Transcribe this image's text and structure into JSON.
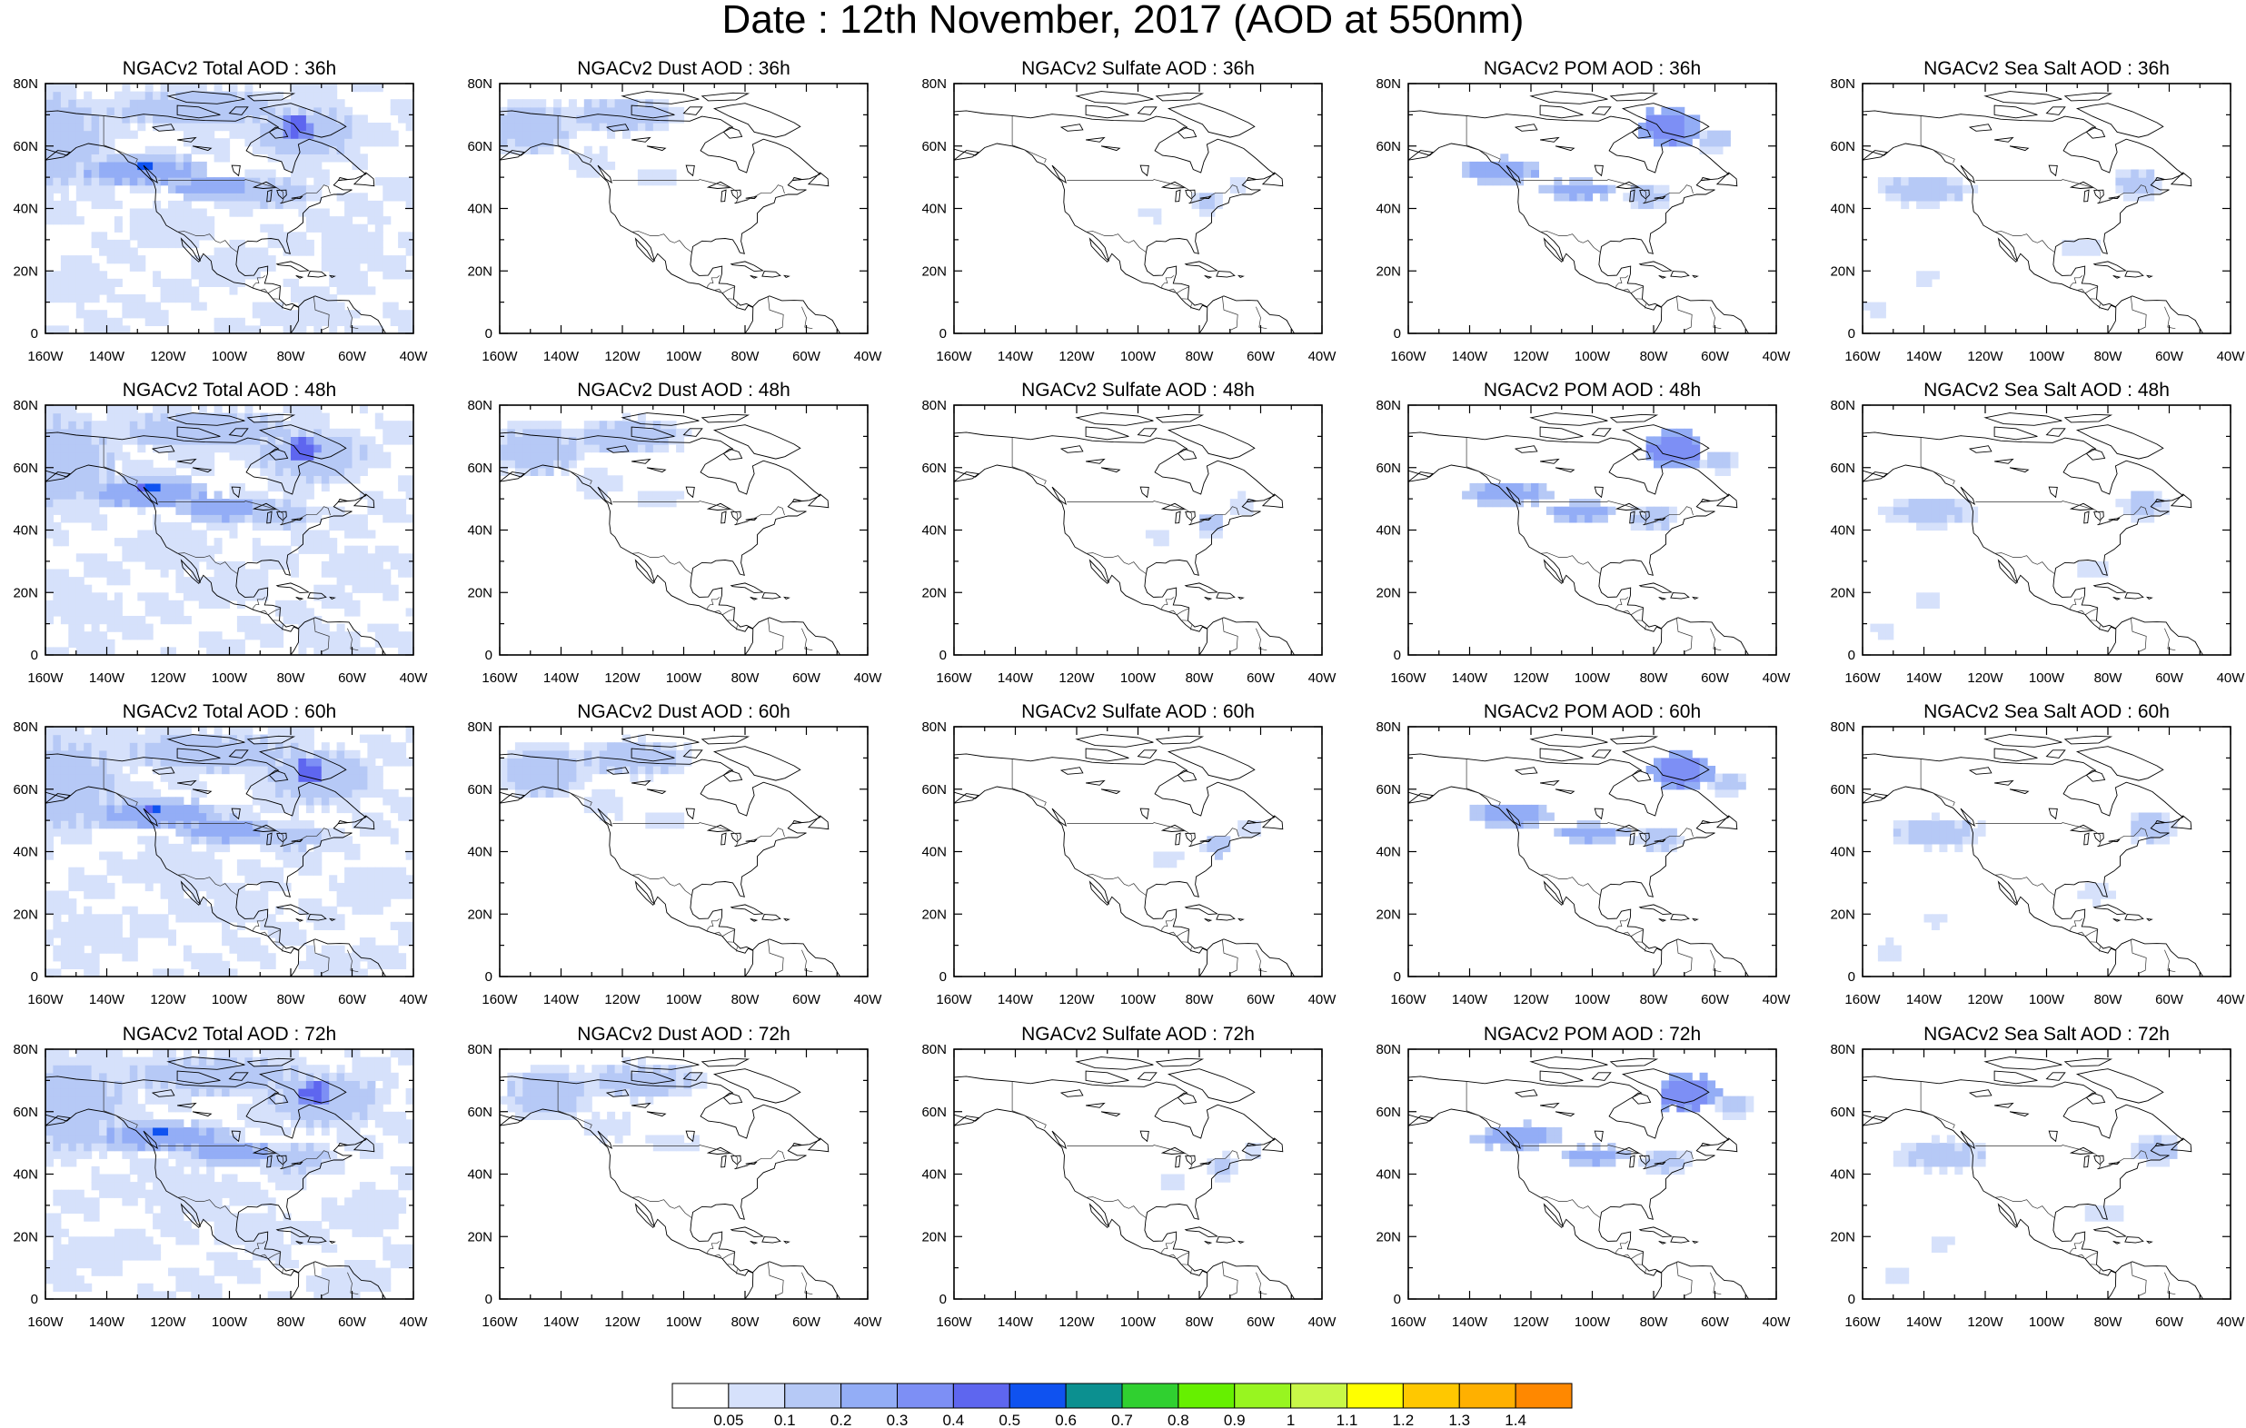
{
  "title": "Date : 12th November, 2017 (AOD at 550nm)",
  "map": {
    "lon_labels": [
      "160W",
      "140W",
      "120W",
      "100W",
      "80W",
      "60W",
      "40W"
    ],
    "lat_labels": [
      "0",
      "20N",
      "40N",
      "60N",
      "80N"
    ]
  },
  "rows": [
    {
      "hour": "36h",
      "titles": [
        "NGACv2 Total AOD : 36h",
        "NGACv2 Dust AOD : 36h",
        "NGACv2 Sulfate AOD : 36h",
        "NGACv2 POM AOD : 36h",
        "NGACv2 Sea Salt AOD : 36h"
      ]
    },
    {
      "hour": "48h",
      "titles": [
        "NGACv2 Total AOD : 48h",
        "NGACv2 Dust AOD : 48h",
        "NGACv2 Sulfate AOD : 48h",
        "NGACv2 POM AOD : 48h",
        "NGACv2 Sea Salt AOD : 48h"
      ]
    },
    {
      "hour": "60h",
      "titles": [
        "NGACv2 Total AOD : 60h",
        "NGACv2 Dust AOD : 60h",
        "NGACv2 Sulfate AOD : 60h",
        "NGACv2 POM AOD : 60h",
        "NGACv2 Sea Salt AOD : 60h"
      ]
    },
    {
      "hour": "72h",
      "titles": [
        "NGACv2 Total AOD : 72h",
        "NGACv2 Dust AOD : 72h",
        "NGACv2 Sulfate AOD : 72h",
        "NGACv2 POM AOD : 72h",
        "NGACv2 Sea Salt  AOD : 72h"
      ]
    }
  ],
  "colorbar": {
    "labels": [
      "0.05",
      "0.1",
      "0.2",
      "0.3",
      "0.4",
      "0.5",
      "0.6",
      "0.7",
      "0.8",
      "0.9",
      "1",
      "1.1",
      "1.2",
      "1.3",
      "1.4"
    ],
    "colors": [
      "#ffffff",
      "#d6e1fb",
      "#b6c9f6",
      "#93adf6",
      "#7d8ff5",
      "#5e66ef",
      "#0f52f0",
      "#0c9090",
      "#30d030",
      "#66f000",
      "#98f520",
      "#c8f848",
      "#ffff00",
      "#ffc800",
      "#ffb000",
      "#ff8800",
      "#ff6a00",
      "#ff2200"
    ]
  }
}
